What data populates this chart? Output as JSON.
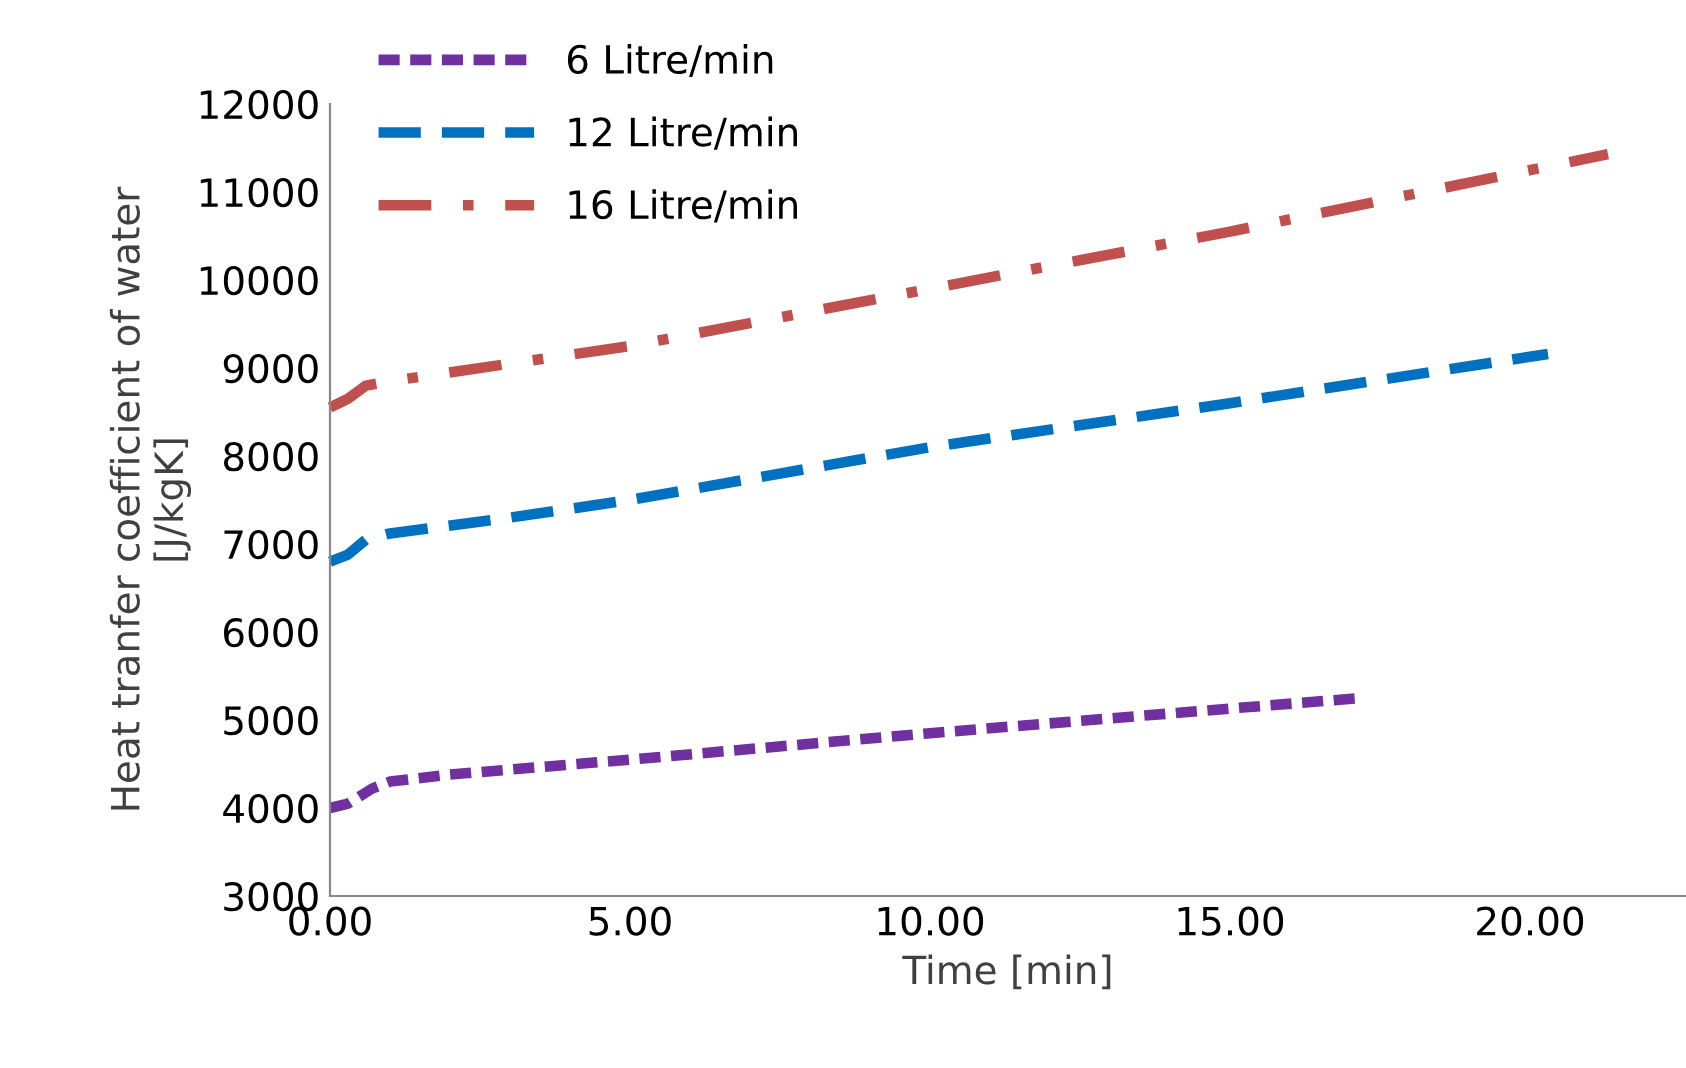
{
  "chart_data": {
    "type": "line",
    "xlabel": "Time [min]",
    "ylabel": "Heat tranfer coefficient of water\n[J/kgK]",
    "xlim": [
      0,
      22.6
    ],
    "xticks": [
      {
        "value": 0,
        "label": "0.00"
      },
      {
        "value": 5,
        "label": "5.00"
      },
      {
        "value": 10,
        "label": "10.00"
      },
      {
        "value": 15,
        "label": "15.00"
      },
      {
        "value": 20,
        "label": "20.00"
      }
    ],
    "ylim": [
      3000,
      12000
    ],
    "yticks": [
      3000,
      4000,
      5000,
      6000,
      7000,
      8000,
      9000,
      10000,
      11000,
      12000
    ],
    "grid": false,
    "legend": "top left",
    "marker": "none",
    "series": [
      {
        "name": "6 Litre/min",
        "color": "#7030a0",
        "line_style": "dotted",
        "x": [
          0,
          0.3,
          0.7,
          1,
          2,
          5,
          10,
          15,
          17.2
        ],
        "values": [
          4000,
          4050,
          4220,
          4300,
          4380,
          4550,
          4850,
          5130,
          5250
        ]
      },
      {
        "name": "12 Litre/min",
        "color": "#0070c0",
        "line_style": "dashed",
        "x": [
          0,
          0.3,
          0.6,
          1,
          3,
          5,
          10,
          15,
          20.3
        ],
        "values": [
          6800,
          6880,
          7050,
          7120,
          7300,
          7500,
          8100,
          8600,
          9160
        ]
      },
      {
        "name": "16 Litre/min",
        "color": "#c0504d",
        "line_style": "dashdot",
        "x": [
          0,
          0.3,
          0.6,
          1,
          5,
          10,
          15,
          21.3
        ],
        "values": [
          8550,
          8650,
          8800,
          8850,
          9250,
          9900,
          10550,
          11430
        ]
      }
    ]
  }
}
